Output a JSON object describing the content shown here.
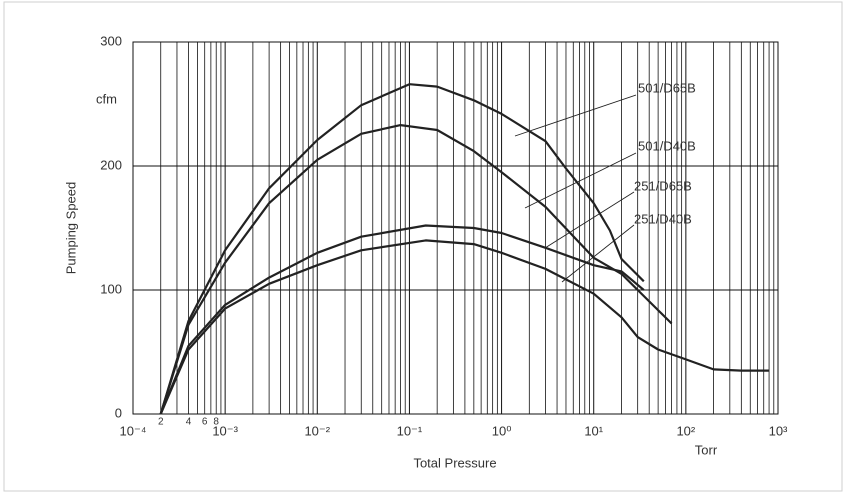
{
  "chart_data": {
    "type": "line",
    "y_label": "Pumping Speed",
    "y_unit": "cfm",
    "x_label": "Total Pressure",
    "x_unit": "Torr",
    "xscale": "log",
    "xlim": [
      0.0001,
      1000
    ],
    "xticks": [
      {
        "value": 0.0001,
        "label": "10⁻⁴"
      },
      {
        "value": 0.001,
        "label": "10⁻³"
      },
      {
        "value": 0.01,
        "label": "10⁻²"
      },
      {
        "value": 0.1,
        "label": "10⁻¹"
      },
      {
        "value": 1,
        "label": "10⁰"
      },
      {
        "value": 10,
        "label": "10¹"
      },
      {
        "value": 100,
        "label": "10²"
      },
      {
        "value": 1000,
        "label": "10³"
      }
    ],
    "minor_xticks": [
      {
        "value": 0.0002,
        "label": "2"
      },
      {
        "value": 0.0004,
        "label": "4"
      },
      {
        "value": 0.0006,
        "label": "6"
      },
      {
        "value": 0.0008,
        "label": "8"
      }
    ],
    "ylim": [
      0,
      300
    ],
    "yticks": [
      0,
      100,
      200,
      300
    ],
    "grid": true,
    "series": [
      {
        "name": "501/D65B",
        "color": "#222222",
        "x": [
          0.0002,
          0.0004,
          0.001,
          0.003,
          0.01,
          0.03,
          0.1,
          0.2,
          0.5,
          1,
          3,
          5,
          10,
          15,
          20,
          35
        ],
        "values": [
          0,
          75,
          132,
          182,
          221,
          249,
          266,
          264,
          253,
          242,
          220,
          198,
          170,
          148,
          125,
          107
        ]
      },
      {
        "name": "501/D40B",
        "color": "#222222",
        "x": [
          0.0002,
          0.0004,
          0.001,
          0.003,
          0.01,
          0.03,
          0.08,
          0.2,
          0.5,
          1,
          3,
          10,
          20,
          30,
          70
        ],
        "values": [
          0,
          72,
          122,
          170,
          205,
          226,
          233,
          229,
          212,
          195,
          167,
          126,
          113,
          100,
          73
        ]
      },
      {
        "name": "251/D65B",
        "color": "#222222",
        "x": [
          0.0002,
          0.0004,
          0.001,
          0.003,
          0.01,
          0.03,
          0.15,
          0.5,
          1,
          3,
          10,
          20,
          35
        ],
        "values": [
          0,
          55,
          88,
          110,
          130,
          143,
          152,
          150,
          146,
          134,
          120,
          115,
          100
        ]
      },
      {
        "name": "251/D40B",
        "color": "#222222",
        "x": [
          0.0002,
          0.0004,
          0.001,
          0.003,
          0.01,
          0.03,
          0.15,
          0.5,
          1,
          3,
          10,
          20,
          30,
          50,
          100,
          200,
          400,
          800
        ],
        "values": [
          0,
          52,
          85,
          105,
          120,
          132,
          140,
          137,
          130,
          117,
          97,
          78,
          62,
          52,
          44,
          36,
          35,
          35
        ]
      }
    ]
  }
}
